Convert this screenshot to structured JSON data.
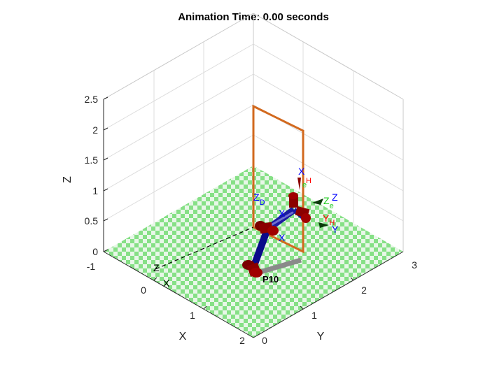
{
  "figure": {
    "title": "Animation Time: 0.00 seconds",
    "axes": {
      "x": {
        "label": "X",
        "ticks": [
          "-1",
          "0",
          "1",
          "2"
        ]
      },
      "y": {
        "label": "Y",
        "ticks": [
          "0",
          "1",
          "2",
          "3"
        ]
      },
      "z": {
        "label": "Z",
        "ticks": [
          "0",
          "0.5",
          "1",
          "1.5",
          "2",
          "2.5"
        ]
      }
    },
    "floor_colors": {
      "light": "#e8f7e8",
      "dark": "#86e086"
    },
    "frame_labels": [
      {
        "id": "zd",
        "text": "Z",
        "sub": "D",
        "color": "#0000ff"
      },
      {
        "id": "xd",
        "text": "X",
        "sub": "",
        "color": "#0000ff"
      },
      {
        "id": "xe",
        "text": "X",
        "sub": "",
        "color": "#0000ff"
      },
      {
        "id": "ze",
        "text": "Z",
        "sub": "e",
        "color": "#22cc22"
      },
      {
        "id": "ye",
        "text": "Y",
        "sub": "e",
        "color": "#22cc22"
      },
      {
        "id": "yh",
        "text": "Y",
        "sub": "H",
        "color": "#ff0000"
      },
      {
        "id": "yb",
        "text": "Y",
        "sub": "",
        "color": "#0000ff"
      },
      {
        "id": "zb",
        "text": "Z",
        "sub": "",
        "color": "#000000"
      },
      {
        "id": "xb",
        "text": "X",
        "sub": "",
        "color": "#000000"
      },
      {
        "id": "robot",
        "text": "P10",
        "sub": "",
        "color": "#000000"
      }
    ]
  }
}
